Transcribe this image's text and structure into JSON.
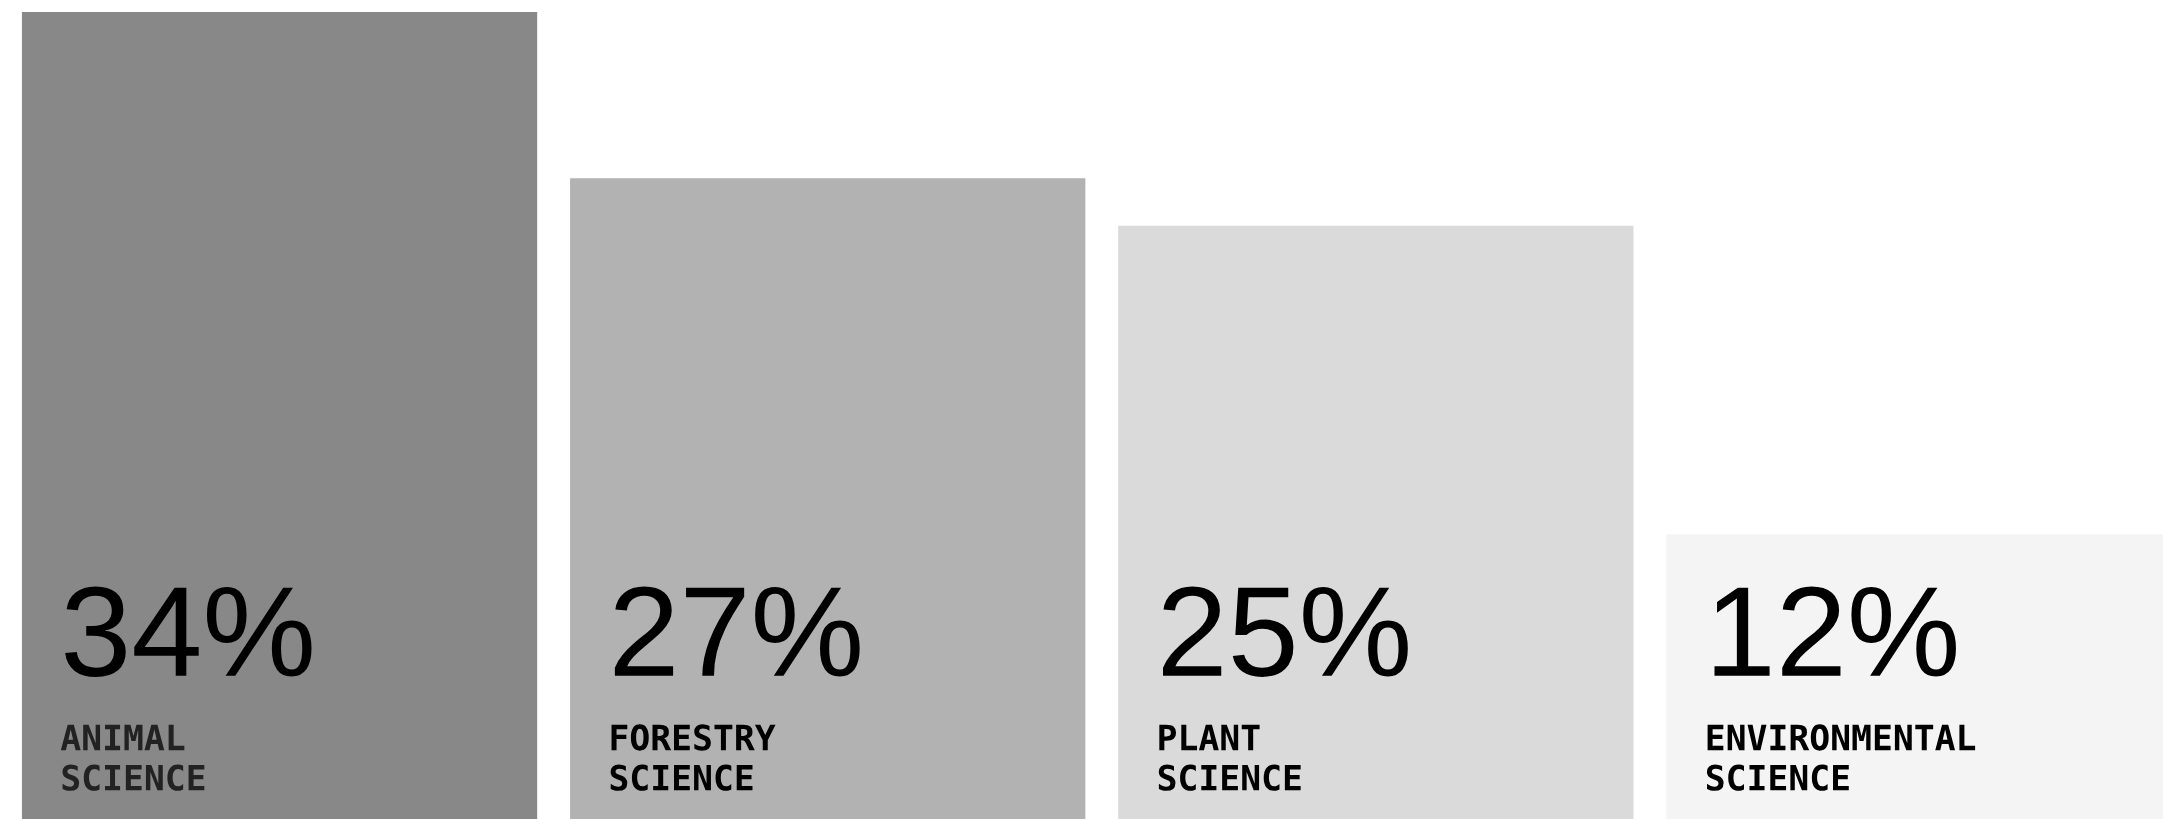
{
  "chart_data": {
    "type": "bar",
    "categories": [
      "ANIMAL\nSCIENCE",
      "FORESTRY\nSCIENCE",
      "PLANT\nSCIENCE",
      "ENVIRONMENTAL\nSCIENCE"
    ],
    "values": [
      34,
      27,
      25,
      12
    ],
    "colors": [
      "#888888",
      "#b2b2b2",
      "#dadada",
      "#f4f4f4"
    ],
    "value_labels": [
      "34%",
      "27%",
      "25%",
      "12%"
    ]
  }
}
